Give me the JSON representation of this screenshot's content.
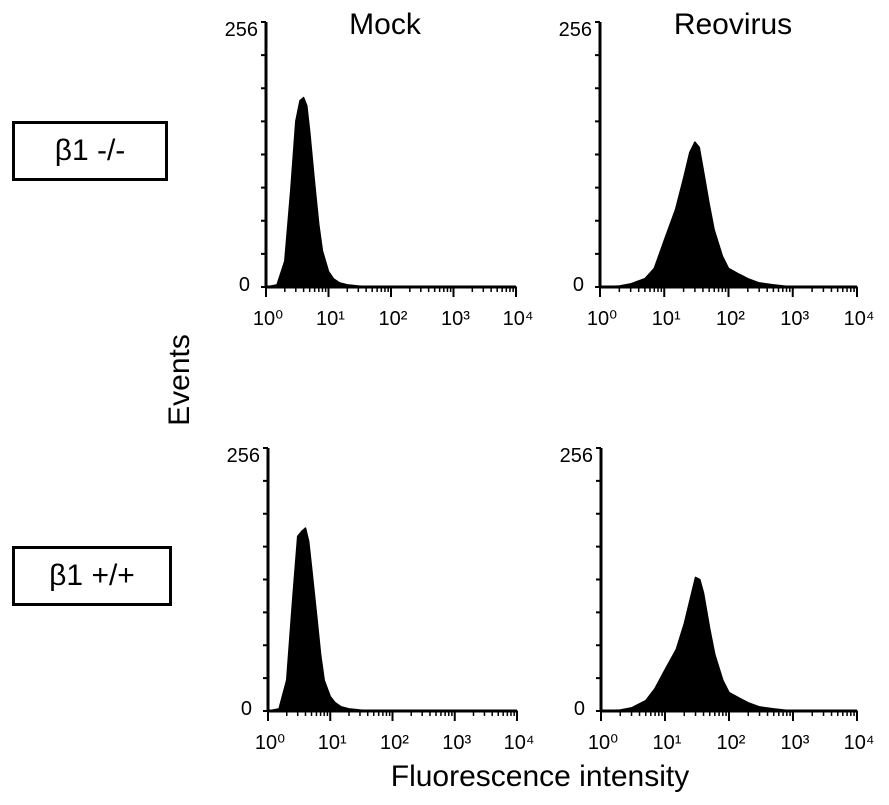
{
  "column_titles": {
    "mock": "Mock",
    "reovirus": "Reovirus"
  },
  "row_labels": {
    "b1_null": "β1 -/-",
    "b1_wt": "β1 +/+"
  },
  "ylabel": "Events",
  "xlabel": "Fluorescence intensity",
  "chart_data": [
    {
      "type": "area",
      "panel": "β1 -/- Mock",
      "x_scale": "log",
      "xlim": [
        1,
        10000
      ],
      "ylim": [
        0,
        256
      ],
      "x_ticks": [
        "10⁰",
        "10¹",
        "10²",
        "10³",
        "10⁴"
      ],
      "y_ticks": [
        "0",
        "256"
      ],
      "x": [
        1,
        1.5,
        2,
        2.5,
        3,
        3.5,
        4,
        4.5,
        5,
        6,
        7,
        8,
        10,
        12,
        15,
        20,
        30,
        50,
        100,
        10000
      ],
      "y": [
        0,
        2,
        25,
        95,
        160,
        180,
        183,
        175,
        150,
        100,
        60,
        35,
        15,
        8,
        4,
        2,
        1,
        0,
        0,
        0
      ],
      "color": "#000000"
    },
    {
      "type": "area",
      "panel": "Reovirus β1 -/-",
      "x_scale": "log",
      "xlim": [
        1,
        10000
      ],
      "ylim": [
        0,
        256
      ],
      "x_ticks": [
        "10⁰",
        "10¹",
        "10²",
        "10³",
        "10⁴"
      ],
      "y_ticks": [
        "0",
        "256"
      ],
      "x": [
        1,
        2,
        3,
        5,
        7,
        10,
        15,
        20,
        25,
        30,
        35,
        40,
        50,
        60,
        80,
        100,
        150,
        200,
        300,
        500,
        1000,
        10000
      ],
      "y": [
        0,
        1,
        3,
        8,
        18,
        45,
        75,
        105,
        130,
        140,
        135,
        115,
        80,
        55,
        30,
        18,
        12,
        8,
        4,
        2,
        0,
        0
      ],
      "color": "#000000"
    },
    {
      "type": "area",
      "panel": "β1 +/+ Mock",
      "x_scale": "log",
      "xlim": [
        1,
        10000
      ],
      "ylim": [
        0,
        256
      ],
      "x_ticks": [
        "10⁰",
        "10¹",
        "10²",
        "10³",
        "10⁴"
      ],
      "y_ticks": [
        "0",
        "256"
      ],
      "x": [
        1,
        1.5,
        2,
        2.5,
        3,
        3.5,
        4,
        4.5,
        5,
        6,
        7,
        8,
        10,
        12,
        15,
        20,
        30,
        50,
        100,
        10000
      ],
      "y": [
        0,
        2,
        30,
        110,
        170,
        175,
        178,
        165,
        140,
        95,
        55,
        30,
        14,
        8,
        4,
        2,
        1,
        0,
        0,
        0
      ],
      "color": "#000000"
    },
    {
      "type": "area",
      "panel": "β1 +/+ Reovirus",
      "x_scale": "log",
      "xlim": [
        1,
        10000
      ],
      "ylim": [
        0,
        256
      ],
      "x_ticks": [
        "10⁰",
        "10¹",
        "10²",
        "10³",
        "10⁴"
      ],
      "y_ticks": [
        "0",
        "256"
      ],
      "x": [
        1,
        2,
        3,
        5,
        7,
        10,
        15,
        20,
        25,
        30,
        35,
        40,
        50,
        60,
        80,
        100,
        150,
        200,
        300,
        500,
        1000,
        10000
      ],
      "y": [
        0,
        1,
        3,
        10,
        22,
        40,
        60,
        85,
        110,
        130,
        128,
        115,
        80,
        55,
        30,
        18,
        12,
        8,
        4,
        2,
        0,
        0
      ],
      "color": "#000000"
    }
  ]
}
